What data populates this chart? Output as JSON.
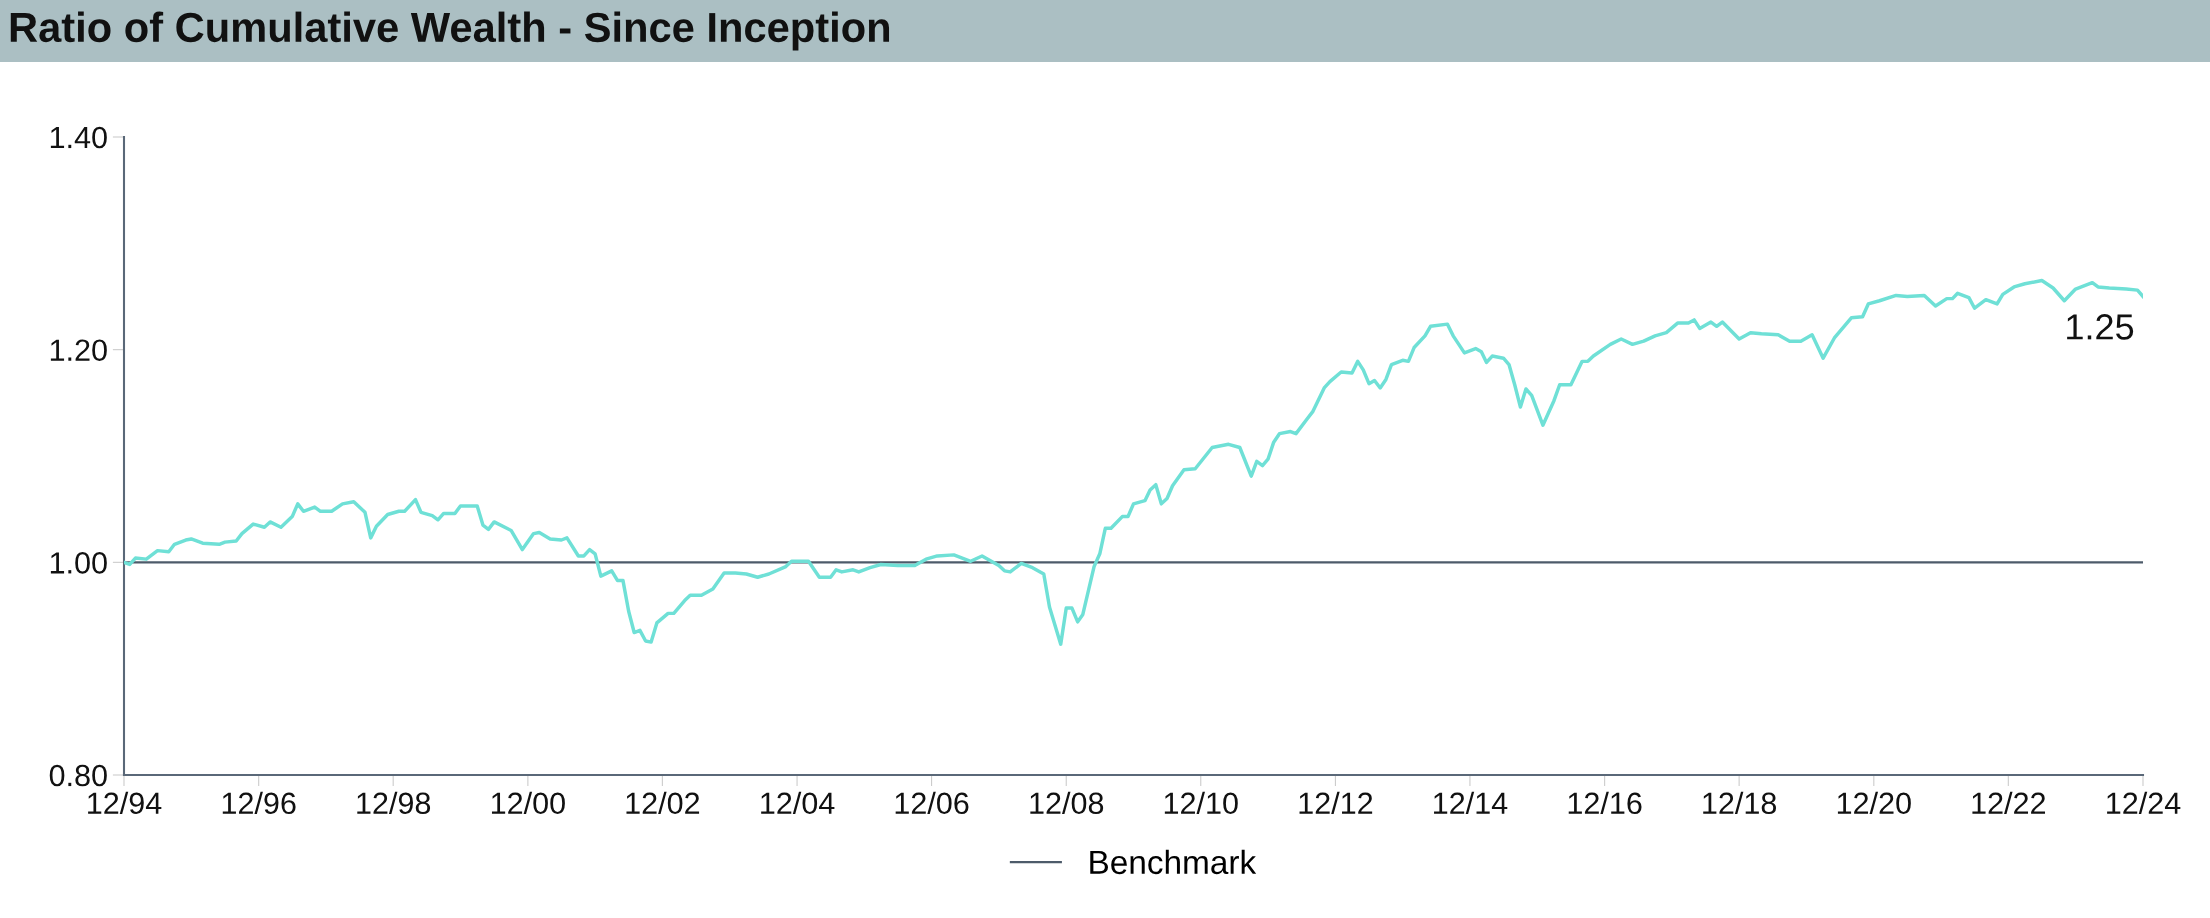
{
  "chart_data": {
    "type": "line",
    "title": "Ratio of Cumulative Wealth - Since Inception",
    "series": [
      {
        "color": "#6fe0d6",
        "x": [
          "1994-12",
          "1995-01",
          "1995-02",
          "1995-04",
          "1995-06",
          "1995-08",
          "1995-09",
          "1995-11",
          "1995-12",
          "1996-02",
          "1996-05",
          "1996-06",
          "1996-08",
          "1996-09",
          "1996-11",
          "1997-01",
          "1997-02",
          "1997-04",
          "1997-06",
          "1997-07",
          "1997-08",
          "1997-10",
          "1997-11",
          "1998-01",
          "1998-03",
          "1998-05",
          "1998-07",
          "1998-08",
          "1998-09",
          "1998-11",
          "1999-01",
          "1999-02",
          "1999-04",
          "1999-05",
          "1999-07",
          "1999-08",
          "1999-09",
          "1999-11",
          "1999-12",
          "2000-03",
          "2000-04",
          "2000-05",
          "2000-06",
          "2000-09",
          "2000-11",
          "2001-01",
          "2001-02",
          "2001-04",
          "2001-06",
          "2001-07",
          "2001-09",
          "2001-10",
          "2001-11",
          "2001-12",
          "2002-01",
          "2002-03",
          "2002-04",
          "2002-05",
          "2002-06",
          "2002-07",
          "2002-08",
          "2002-09",
          "2002-10",
          "2002-11",
          "2003-01",
          "2003-02",
          "2003-04",
          "2003-05",
          "2003-07",
          "2003-09",
          "2003-11",
          "2004-01",
          "2004-03",
          "2004-05",
          "2004-07",
          "2004-10",
          "2004-11",
          "2005-02",
          "2005-04",
          "2005-06",
          "2005-07",
          "2005-08",
          "2005-10",
          "2005-11",
          "2006-01",
          "2006-03",
          "2006-06",
          "2006-09",
          "2006-11",
          "2007-01",
          "2007-04",
          "2007-07",
          "2007-09",
          "2007-12",
          "2008-01",
          "2008-02",
          "2008-04",
          "2008-06",
          "2008-08",
          "2008-09",
          "2008-11",
          "2008-12",
          "2009-01",
          "2009-02",
          "2009-03",
          "2009-05",
          "2009-06",
          "2009-07",
          "2009-08",
          "2009-10",
          "2009-11",
          "2009-12",
          "2010-02",
          "2010-03",
          "2010-04",
          "2010-05",
          "2010-06",
          "2010-07",
          "2010-09",
          "2010-11",
          "2011-02",
          "2011-05",
          "2011-07",
          "2011-09",
          "2011-10",
          "2011-11",
          "2011-12",
          "2012-01",
          "2012-02",
          "2012-04",
          "2012-05",
          "2012-07",
          "2012-08",
          "2012-10",
          "2012-11",
          "2013-01",
          "2013-03",
          "2013-04",
          "2013-05",
          "2013-06",
          "2013-07",
          "2013-08",
          "2013-09",
          "2013-10",
          "2013-12",
          "2014-01",
          "2014-02",
          "2014-04",
          "2014-05",
          "2014-08",
          "2014-09",
          "2014-11",
          "2015-01",
          "2015-02",
          "2015-03",
          "2015-04",
          "2015-06",
          "2015-07",
          "2015-08",
          "2015-09",
          "2015-10",
          "2015-11",
          "2016-01",
          "2016-03",
          "2016-04",
          "2016-06",
          "2016-08",
          "2016-09",
          "2016-10",
          "2017-01",
          "2017-03",
          "2017-05",
          "2017-07",
          "2017-09",
          "2017-11",
          "2018-01",
          "2018-03",
          "2018-04",
          "2018-05",
          "2018-07",
          "2018-08",
          "2018-09",
          "2018-12",
          "2019-02",
          "2019-04",
          "2019-07",
          "2019-09",
          "2019-11",
          "2020-01",
          "2020-03",
          "2020-05",
          "2020-08",
          "2020-10",
          "2020-11",
          "2021-01",
          "2021-04",
          "2021-06",
          "2021-09",
          "2021-11",
          "2022-01",
          "2022-02",
          "2022-03",
          "2022-05",
          "2022-06",
          "2022-08",
          "2022-10",
          "2022-11",
          "2023-01",
          "2023-03",
          "2023-06",
          "2023-08",
          "2023-10",
          "2023-12",
          "2024-03",
          "2024-04",
          "2024-06",
          "2024-09",
          "2024-11",
          "2024-12"
        ],
        "values": [
          1.0,
          0.998,
          1.004,
          1.003,
          1.011,
          1.01,
          1.017,
          1.021,
          1.022,
          1.018,
          1.017,
          1.019,
          1.02,
          1.027,
          1.036,
          1.033,
          1.038,
          1.033,
          1.043,
          1.055,
          1.048,
          1.052,
          1.048,
          1.048,
          1.055,
          1.057,
          1.047,
          1.023,
          1.034,
          1.045,
          1.048,
          1.048,
          1.059,
          1.047,
          1.044,
          1.04,
          1.046,
          1.046,
          1.053,
          1.053,
          1.035,
          1.031,
          1.038,
          1.03,
          1.012,
          1.027,
          1.028,
          1.022,
          1.021,
          1.023,
          1.006,
          1.006,
          1.012,
          1.008,
          0.987,
          0.992,
          0.983,
          0.983,
          0.954,
          0.934,
          0.936,
          0.926,
          0.925,
          0.943,
          0.952,
          0.952,
          0.964,
          0.969,
          0.969,
          0.975,
          0.99,
          0.99,
          0.989,
          0.986,
          0.989,
          0.996,
          1.001,
          1.001,
          0.986,
          0.986,
          0.993,
          0.991,
          0.993,
          0.991,
          0.995,
          0.998,
          0.997,
          0.997,
          1.003,
          1.006,
          1.007,
          1.001,
          1.006,
          0.997,
          0.992,
          0.991,
          0.999,
          0.995,
          0.989,
          0.958,
          0.923,
          0.957,
          0.957,
          0.944,
          0.951,
          0.996,
          1.008,
          1.032,
          1.032,
          1.043,
          1.043,
          1.055,
          1.058,
          1.068,
          1.073,
          1.055,
          1.06,
          1.072,
          1.087,
          1.088,
          1.108,
          1.111,
          1.108,
          1.081,
          1.095,
          1.091,
          1.097,
          1.113,
          1.121,
          1.123,
          1.121,
          1.135,
          1.142,
          1.164,
          1.17,
          1.179,
          1.178,
          1.189,
          1.181,
          1.168,
          1.171,
          1.164,
          1.172,
          1.186,
          1.19,
          1.189,
          1.202,
          1.213,
          1.222,
          1.224,
          1.213,
          1.197,
          1.201,
          1.198,
          1.188,
          1.194,
          1.192,
          1.186,
          1.167,
          1.146,
          1.163,
          1.157,
          1.129,
          1.152,
          1.167,
          1.167,
          1.189,
          1.189,
          1.194,
          1.205,
          1.21,
          1.205,
          1.208,
          1.213,
          1.216,
          1.225,
          1.225,
          1.228,
          1.22,
          1.226,
          1.222,
          1.226,
          1.21,
          1.216,
          1.215,
          1.214,
          1.208,
          1.208,
          1.214,
          1.192,
          1.211,
          1.23,
          1.231,
          1.243,
          1.246,
          1.251,
          1.25,
          1.251,
          1.241,
          1.248,
          1.248,
          1.253,
          1.249,
          1.239,
          1.247,
          1.243,
          1.252,
          1.259,
          1.262,
          1.265,
          1.258,
          1.246,
          1.257,
          1.263,
          1.259,
          1.258,
          1.257,
          1.256,
          1.25
        ]
      }
    ],
    "xlim": [
      "1994-12",
      "2024-12"
    ],
    "xticks": [
      {
        "value": "1994-12",
        "label": "12/94"
      },
      {
        "value": "1996-12",
        "label": "12/96"
      },
      {
        "value": "1998-12",
        "label": "12/98"
      },
      {
        "value": "2000-12",
        "label": "12/00"
      },
      {
        "value": "2002-12",
        "label": "12/02"
      },
      {
        "value": "2004-12",
        "label": "12/04"
      },
      {
        "value": "2006-12",
        "label": "12/06"
      },
      {
        "value": "2008-12",
        "label": "12/08"
      },
      {
        "value": "2010-12",
        "label": "12/10"
      },
      {
        "value": "2012-12",
        "label": "12/12"
      },
      {
        "value": "2014-12",
        "label": "12/14"
      },
      {
        "value": "2016-12",
        "label": "12/16"
      },
      {
        "value": "2018-12",
        "label": "12/18"
      },
      {
        "value": "2020-12",
        "label": "12/20"
      },
      {
        "value": "2022-12",
        "label": "12/22"
      },
      {
        "value": "2024-12",
        "label": "12/24"
      }
    ],
    "ylim": [
      0.8,
      1.4
    ],
    "yticks": [
      {
        "value": 0.8,
        "label": "0.80"
      },
      {
        "value": 1.0,
        "label": "1.00"
      },
      {
        "value": 1.2,
        "label": "1.20"
      },
      {
        "value": 1.4,
        "label": "1.40"
      }
    ],
    "ref_lines": [
      {
        "axis": "y",
        "value": 1.0,
        "label": "Benchmark",
        "color": "#4d5b6a"
      }
    ],
    "annotations": [
      {
        "text": "1.25",
        "x": "2024-12",
        "y": 1.25
      }
    ],
    "grid": false,
    "legend": "bottom",
    "marker": "none",
    "line_style": "solid"
  }
}
